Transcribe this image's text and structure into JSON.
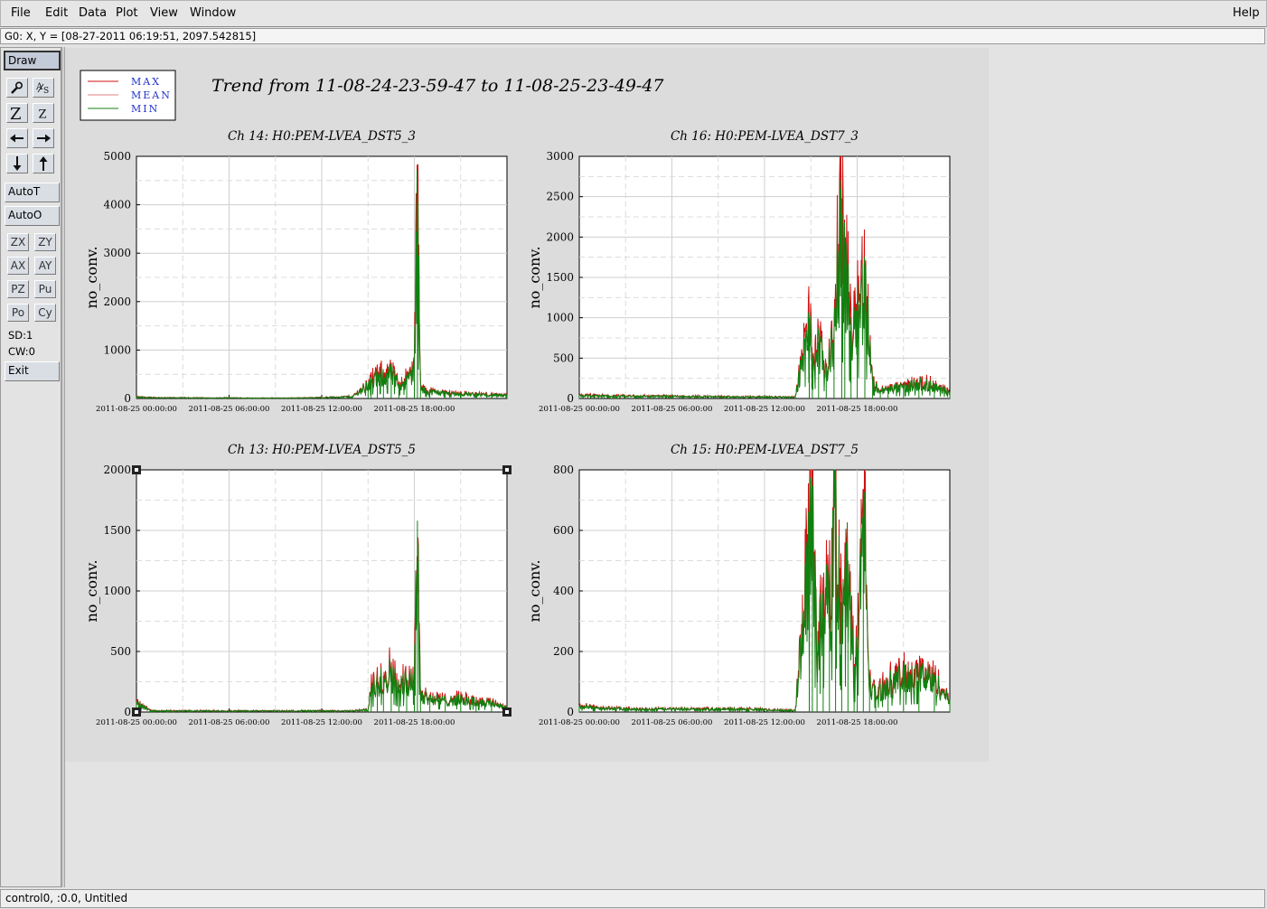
{
  "menubar": {
    "items": [
      "File",
      "Edit",
      "Data",
      "Plot",
      "View",
      "Window"
    ],
    "help": "Help"
  },
  "coord_readout": "G0: X, Y = [08-27-2011 06:19:51, 2097.542815]",
  "toolbar": {
    "draw": "Draw",
    "icons": [
      "magnify-icon",
      "as-icon",
      "z-large-icon",
      "z-small-icon",
      "arrow-left-icon",
      "arrow-right-icon",
      "arrow-down-icon",
      "arrow-up-icon"
    ],
    "autot": "AutoT",
    "autoo": "AutoO",
    "small_buttons": [
      "ZX",
      "ZY",
      "AX",
      "AY",
      "PZ",
      "Pu",
      "Po",
      "Cy"
    ],
    "sd": "SD:1",
    "cw": "CW:0",
    "exit": "Exit"
  },
  "plot": {
    "title": "Trend from 11-08-24-23-59-47 to 11-08-25-23-49-47",
    "legend": [
      {
        "label": "MAX",
        "color": "#d01010"
      },
      {
        "label": "MEAN",
        "color": "#e08080"
      },
      {
        "label": "MIN",
        "color": "#108010"
      }
    ]
  },
  "statusbar": "control0, :0.0, Untitled",
  "chart_data": [
    {
      "type": "line",
      "title": "Ch 14: H0:PEM-LVEA_DST5_3",
      "ylabel": "no_conv.",
      "xlabel": "",
      "x_ticks": [
        "2011-08-25 00:00:00",
        "2011-08-25 06:00:00",
        "2011-08-25 12:00:00",
        "2011-08-25 18:00:00"
      ],
      "y_ticks": [
        0,
        1000,
        2000,
        3000,
        4000,
        5000
      ],
      "ylim": [
        0,
        5000
      ],
      "xlim_hours": [
        0,
        24
      ],
      "grid": true,
      "selected": false,
      "series": [
        {
          "name": "MIN",
          "x_hours": [
            0,
            1,
            2,
            3,
            4,
            5,
            6,
            7,
            8,
            9,
            10,
            11,
            12,
            13,
            14,
            15,
            15.2,
            15.6,
            16,
            16.5,
            17,
            17.5,
            18,
            18.2,
            18.4,
            19,
            20,
            21,
            22,
            23,
            24
          ],
          "values": [
            30,
            20,
            15,
            15,
            15,
            10,
            15,
            10,
            10,
            10,
            10,
            15,
            20,
            30,
            40,
            300,
            400,
            450,
            500,
            550,
            300,
            400,
            650,
            4280,
            200,
            150,
            120,
            100,
            90,
            80,
            60
          ]
        }
      ]
    },
    {
      "type": "line",
      "title": "Ch 16: H0:PEM-LVEA_DST7_3",
      "ylabel": "no_conv.",
      "xlabel": "",
      "x_ticks": [
        "2011-08-25 00:00:00",
        "2011-08-25 06:00:00",
        "2011-08-25 12:00:00",
        "2011-08-25 18:00:00"
      ],
      "y_ticks": [
        0,
        500,
        1000,
        1500,
        2000,
        2500,
        3000
      ],
      "ylim": [
        0,
        3000
      ],
      "xlim_hours": [
        0,
        24
      ],
      "grid": true,
      "selected": false,
      "series": [
        {
          "name": "MIN",
          "x_hours": [
            0,
            2,
            4,
            6,
            8,
            10,
            12,
            14,
            14.9,
            15.1,
            15.5,
            16,
            16.5,
            17,
            17.2,
            17.6,
            18,
            18.5,
            19,
            19.5,
            20,
            21,
            22,
            23,
            24
          ],
          "values": [
            40,
            30,
            30,
            30,
            25,
            20,
            20,
            20,
            1000,
            500,
            700,
            350,
            800,
            2480,
            1700,
            900,
            1200,
            1450,
            200,
            100,
            120,
            150,
            200,
            160,
            80
          ]
        }
      ]
    },
    {
      "type": "line",
      "title": "Ch 13: H0:PEM-LVEA_DST5_5",
      "ylabel": "no_conv.",
      "xlabel": "",
      "x_ticks": [
        "2011-08-25 00:00:00",
        "2011-08-25 06:00:00",
        "2011-08-25 12:00:00",
        "2011-08-25 18:00:00"
      ],
      "y_ticks": [
        0,
        500,
        1000,
        1500,
        2000
      ],
      "ylim": [
        0,
        2000
      ],
      "xlim_hours": [
        0,
        24
      ],
      "grid": true,
      "selected": true,
      "series": [
        {
          "name": "MIN",
          "x_hours": [
            0,
            0.3,
            1,
            3,
            5,
            8,
            11,
            14,
            15,
            15.2,
            15.6,
            16,
            16.5,
            17,
            17.5,
            18,
            18.2,
            18.4,
            19,
            20,
            21,
            22,
            23,
            24
          ],
          "values": [
            80,
            60,
            10,
            10,
            10,
            10,
            10,
            10,
            20,
            200,
            250,
            300,
            350,
            200,
            280,
            300,
            1580,
            150,
            120,
            100,
            110,
            90,
            80,
            40
          ]
        }
      ]
    },
    {
      "type": "line",
      "title": "Ch 15: H0:PEM-LVEA_DST7_5",
      "ylabel": "no_conv.",
      "xlabel": "",
      "x_ticks": [
        "2011-08-25 00:00:00",
        "2011-08-25 06:00:00",
        "2011-08-25 12:00:00",
        "2011-08-25 18:00:00"
      ],
      "y_ticks": [
        0,
        200,
        400,
        600,
        800
      ],
      "ylim": [
        0,
        800
      ],
      "xlim_hours": [
        0,
        24
      ],
      "grid": true,
      "selected": false,
      "series": [
        {
          "name": "MIN",
          "x_hours": [
            0,
            1,
            3,
            6,
            9,
            11,
            14,
            14.9,
            15.1,
            15.4,
            15.8,
            16.2,
            16.6,
            17,
            17.4,
            17.8,
            18,
            18.4,
            18.8,
            19.2,
            20,
            21,
            22,
            23,
            24
          ],
          "values": [
            20,
            15,
            10,
            10,
            10,
            10,
            5,
            600,
            690,
            200,
            400,
            350,
            780,
            300,
            500,
            150,
            200,
            700,
            100,
            60,
            100,
            120,
            130,
            110,
            40
          ]
        }
      ]
    }
  ]
}
